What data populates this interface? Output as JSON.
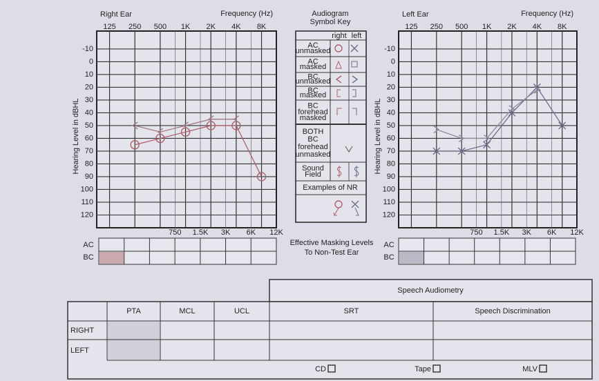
{
  "chart_data": [
    {
      "type": "line",
      "title": "Right Ear",
      "x_label": "Frequency (Hz)",
      "y_label": "Hearing Level in dBHL",
      "x": [
        250,
        500,
        1000,
        2000,
        4000,
        8000
      ],
      "series": [
        {
          "marker": "circle",
          "color": "#b0606c",
          "values": [
            65,
            60,
            55,
            50,
            50,
            90
          ]
        },
        {
          "marker": "lt",
          "color": "#a07880",
          "values": [
            50,
            55,
            50,
            45,
            45,
            null
          ]
        }
      ],
      "log_x": true,
      "invert_y": true,
      "xlim": [
        88,
        12000
      ],
      "ylim": [
        -24,
        130
      ],
      "xticks": [
        125,
        250,
        500,
        {
          "value": 1000,
          "label": "1K"
        },
        {
          "value": 2000,
          "label": "2K"
        },
        {
          "value": 4000,
          "label": "4K"
        },
        {
          "value": 8000,
          "label": "8K"
        }
      ],
      "x2ticks": [
        750,
        {
          "value": 1500,
          "label": "1.5K"
        },
        {
          "value": 3000,
          "label": "3K"
        },
        {
          "value": 6000,
          "label": "6K"
        },
        {
          "value": 12000,
          "label": "12K"
        }
      ],
      "yticks": [
        -10,
        0,
        10,
        20,
        30,
        40,
        50,
        60,
        70,
        80,
        90,
        100,
        110,
        120
      ],
      "grid": true
    },
    {
      "type": "line",
      "title": "Left Ear",
      "x_label": "Frequency (Hz)",
      "y_label": "Hearing Level in dBHL",
      "x": [
        250,
        500,
        1000,
        2000,
        4000,
        8000
      ],
      "series": [
        {
          "marker": "x",
          "color": "#6c6c8c",
          "values": [
            70,
            70,
            65,
            40,
            20,
            50
          ]
        },
        {
          "marker": "gt",
          "color": "#8a8aa0",
          "values": [
            53,
            60,
            60,
            37,
            22,
            null
          ]
        }
      ],
      "log_x": true,
      "invert_y": true,
      "xlim": [
        88,
        12000
      ],
      "ylim": [
        -24,
        130
      ],
      "xticks": [
        125,
        250,
        500,
        {
          "value": 1000,
          "label": "1K"
        },
        {
          "value": 2000,
          "label": "2K"
        },
        {
          "value": 4000,
          "label": "4K"
        },
        {
          "value": 8000,
          "label": "8K"
        }
      ],
      "x2ticks": [
        750,
        {
          "value": 1500,
          "label": "1.5K"
        },
        {
          "value": 3000,
          "label": "3K"
        },
        {
          "value": 6000,
          "label": "6K"
        },
        {
          "value": 12000,
          "label": "12K"
        }
      ],
      "yticks": [
        -10,
        0,
        10,
        20,
        30,
        40,
        50,
        60,
        70,
        80,
        90,
        100,
        110,
        120
      ],
      "grid": true
    }
  ],
  "symbol_key": {
    "title_lines": [
      "Audiogram",
      "Symbol Key"
    ],
    "columns": [
      "right",
      "left"
    ],
    "rows": [
      [
        "AC",
        "unmasked"
      ],
      [
        "AC",
        "masked"
      ],
      [
        "BC",
        "unmasked"
      ],
      [
        "BC",
        "masked"
      ],
      [
        "BC",
        "forehead",
        "masked"
      ],
      [
        "BOTH",
        "BC",
        "forehead",
        "unmasked"
      ],
      [
        "Sound",
        "Field"
      ],
      [
        "Examples of NR"
      ]
    ]
  },
  "masking": {
    "rows": [
      "AC",
      "BC"
    ],
    "caption_lines": [
      "Effective Masking Levels",
      "To Non-Test Ear"
    ]
  },
  "speech": {
    "title": "Speech Audiometry",
    "columns": [
      "PTA",
      "MCL",
      "UCL",
      "SRT",
      "Speech Discrimination"
    ],
    "rows": [
      "RIGHT",
      "LEFT"
    ],
    "options": [
      "CD",
      "Tape",
      "MLV"
    ]
  }
}
